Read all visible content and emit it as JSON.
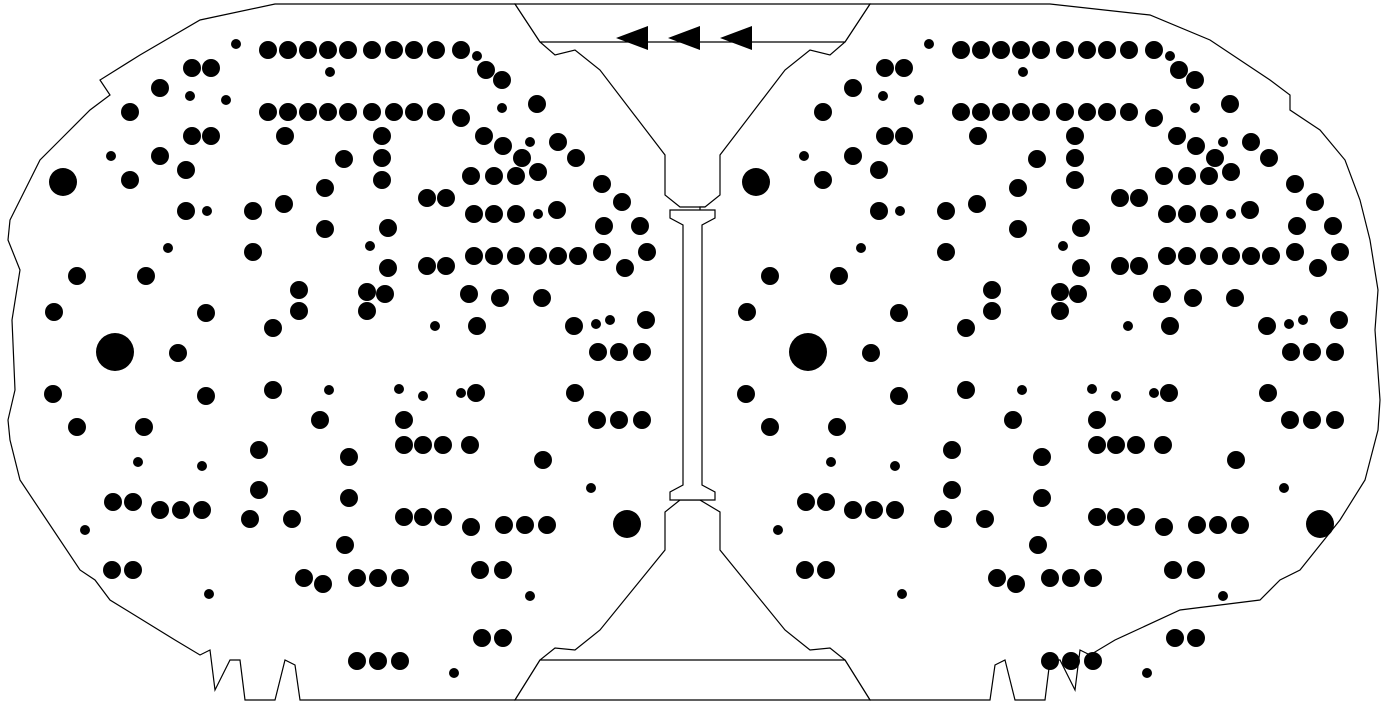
{
  "drawing": {
    "description_free": true,
    "colors": {
      "board": "#ffffff",
      "ink": "#000000"
    },
    "direction_marks": {
      "count": 3,
      "shape": "left-pointing-triangle"
    },
    "boards": [
      {
        "name": "left-board"
      },
      {
        "name": "right-board"
      }
    ]
  }
}
